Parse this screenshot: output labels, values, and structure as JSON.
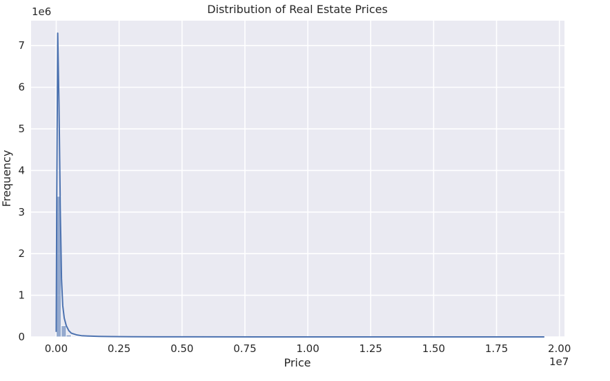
{
  "chart_data": {
    "type": "histogram",
    "title": "Distribution of Real Estate Prices",
    "xlabel": "Price",
    "ylabel": "Frequency",
    "x_offset_label": "1e7",
    "y_offset_label": "1e6",
    "xlim": [
      -0.1,
      2.02
    ],
    "ylim": [
      0,
      7.6
    ],
    "x_ticks": [
      0.0,
      0.25,
      0.5,
      0.75,
      1.0,
      1.25,
      1.5,
      1.75,
      2.0
    ],
    "x_tick_labels": [
      "0.00",
      "0.25",
      "0.50",
      "0.75",
      "1.00",
      "1.25",
      "1.50",
      "1.75",
      "2.00"
    ],
    "y_ticks": [
      0,
      1,
      2,
      3,
      4,
      5,
      6,
      7
    ],
    "y_tick_labels": [
      "0",
      "1",
      "2",
      "3",
      "4",
      "5",
      "6",
      "7"
    ],
    "grid": true,
    "background": "#eaeaf2",
    "bar_color": "#4c72b0",
    "bars": [
      {
        "x0": 0.0,
        "x1": 0.02,
        "value": 3.38
      },
      {
        "x0": 0.02,
        "x1": 0.04,
        "value": 0.27
      },
      {
        "x0": 0.04,
        "x1": 0.06,
        "value": 0.05
      },
      {
        "x0": 0.06,
        "x1": 0.08,
        "value": 0.02
      },
      {
        "x0": 0.08,
        "x1": 0.1,
        "value": 0.01
      }
    ],
    "kde": {
      "name": "KDE",
      "color": "#4c72b0",
      "x": [
        0.0,
        0.002,
        0.006,
        0.011,
        0.016,
        0.021,
        0.026,
        0.032,
        0.04,
        0.05,
        0.06,
        0.08,
        0.1,
        0.13,
        0.17,
        0.22,
        0.3,
        0.4,
        0.55,
        0.8,
        1.2,
        1.6,
        1.94
      ],
      "y": [
        0.12,
        3.2,
        7.3,
        5.6,
        3.2,
        1.4,
        0.75,
        0.45,
        0.27,
        0.15,
        0.09,
        0.05,
        0.03,
        0.02,
        0.012,
        0.008,
        0.005,
        0.003,
        0.002,
        0.001,
        0.0005,
        0.0003,
        0.0001
      ]
    }
  }
}
